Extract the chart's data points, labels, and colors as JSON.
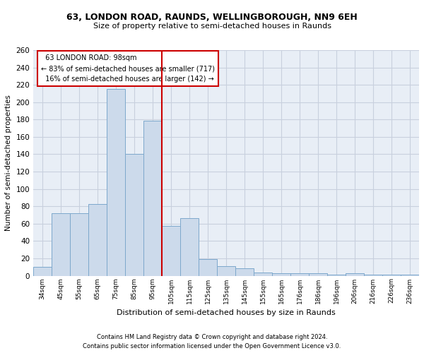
{
  "title1": "63, LONDON ROAD, RAUNDS, WELLINGBOROUGH, NN9 6EH",
  "title2": "Size of property relative to semi-detached houses in Raunds",
  "xlabel": "Distribution of semi-detached houses by size in Raunds",
  "ylabel": "Number of semi-detached properties",
  "footnote1": "Contains HM Land Registry data © Crown copyright and database right 2024.",
  "footnote2": "Contains public sector information licensed under the Open Government Licence v3.0.",
  "bar_color": "#ccdaeb",
  "bar_edge_color": "#7da8cc",
  "grid_color": "#c8d0de",
  "bg_color": "#e8eef6",
  "annotation_box_color": "#cc0000",
  "vline_color": "#cc0000",
  "categories": [
    "34sqm",
    "45sqm",
    "55sqm",
    "65sqm",
    "75sqm",
    "85sqm",
    "95sqm",
    "105sqm",
    "115sqm",
    "125sqm",
    "135sqm",
    "145sqm",
    "155sqm",
    "165sqm",
    "176sqm",
    "186sqm",
    "196sqm",
    "206sqm",
    "216sqm",
    "226sqm",
    "236sqm"
  ],
  "values": [
    10,
    72,
    72,
    83,
    215,
    140,
    179,
    57,
    66,
    19,
    11,
    9,
    4,
    3,
    3,
    3,
    1,
    3,
    1,
    1,
    1
  ],
  "property_label": "63 LONDON ROAD: 98sqm",
  "pct_smaller": 83,
  "n_smaller": 717,
  "pct_larger": 16,
  "n_larger": 142,
  "vline_x_index": 6.5,
  "ylim": [
    0,
    260
  ],
  "yticks": [
    0,
    20,
    40,
    60,
    80,
    100,
    120,
    140,
    160,
    180,
    200,
    220,
    240,
    260
  ]
}
